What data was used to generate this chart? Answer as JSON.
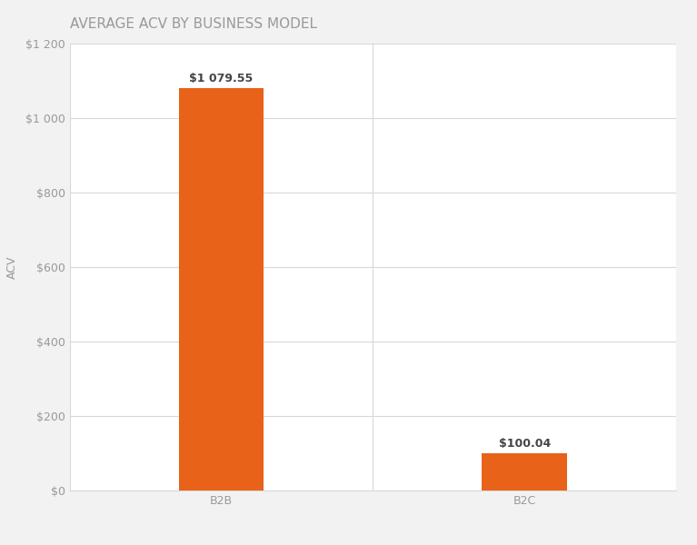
{
  "title": "AVERAGE ACV BY BUSINESS MODEL",
  "categories": [
    "B2B",
    "B2C"
  ],
  "values": [
    1079.55,
    100.04
  ],
  "bar_labels": [
    "$1 079.55",
    "$100.04"
  ],
  "bar_color": "#E8621A",
  "ylabel": "ACV",
  "ylim": [
    0,
    1200
  ],
  "yticks": [
    0,
    200,
    400,
    600,
    800,
    1000,
    1200
  ],
  "ytick_labels": [
    "$0",
    "$200",
    "$400",
    "$600",
    "$800",
    "$1 000",
    "$1 200"
  ],
  "background_color": "#F2F2F2",
  "plot_bg_color": "#FFFFFF",
  "title_color": "#999999",
  "tick_color": "#999999",
  "label_color": "#444444",
  "grid_color": "#D8D8D8",
  "title_fontsize": 11,
  "bar_label_fontsize": 9,
  "axis_label_fontsize": 9,
  "tick_fontsize": 9,
  "bar_width": 0.28
}
